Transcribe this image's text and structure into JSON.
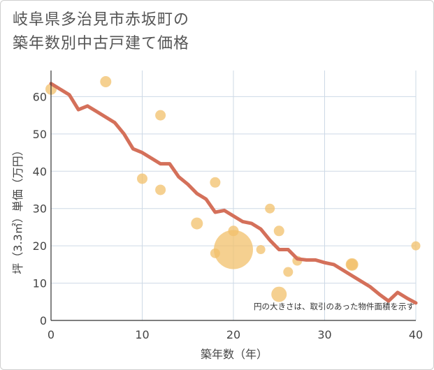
{
  "chart_data": {
    "type": "scatter",
    "title_lines": [
      "岐阜県多治見市赤坂町の",
      "築年数別中古戸建て価格"
    ],
    "xlabel": "築年数（年）",
    "ylabel": "坪（3.3㎡）単価（万円）",
    "xlim": [
      0,
      40
    ],
    "ylim": [
      0,
      67
    ],
    "xticks": [
      0,
      10,
      20,
      30,
      40
    ],
    "yticks": [
      0,
      10,
      20,
      30,
      40,
      50,
      60
    ],
    "grid": true,
    "note": "円の大きさは、取引のあった物件面積を示す",
    "colors": {
      "trend": "#d4705a",
      "bubble": "#f2c06b",
      "grid": "#cdd9e6",
      "axis": "#333333"
    },
    "trend": {
      "x": [
        0,
        1,
        2,
        3,
        4,
        5,
        6,
        7,
        8,
        9,
        10,
        11,
        12,
        13,
        14,
        15,
        16,
        17,
        18,
        19,
        20,
        21,
        22,
        23,
        24,
        25,
        26,
        27,
        28,
        29,
        30,
        31,
        32,
        33,
        34,
        35,
        36,
        37,
        38,
        39,
        40
      ],
      "y": [
        63.5,
        62,
        60.5,
        56.5,
        57.5,
        56,
        54.5,
        53,
        50,
        46,
        45,
        43.5,
        42,
        42,
        38.5,
        36.5,
        34,
        32.5,
        29,
        29.5,
        28,
        26.5,
        26,
        24.5,
        21.5,
        19,
        19,
        16.5,
        16.2,
        16.2,
        15.5,
        15,
        13.5,
        12,
        10.5,
        9,
        7,
        5.2,
        7.5,
        6,
        4.7
      ]
    },
    "points": [
      {
        "x": 0,
        "y": 62,
        "size": 8
      },
      {
        "x": 6,
        "y": 64,
        "size": 8
      },
      {
        "x": 10,
        "y": 38,
        "size": 7.5
      },
      {
        "x": 12,
        "y": 55,
        "size": 7.5
      },
      {
        "x": 12,
        "y": 35,
        "size": 7.5
      },
      {
        "x": 16,
        "y": 26,
        "size": 8.5
      },
      {
        "x": 18,
        "y": 37,
        "size": 7.5
      },
      {
        "x": 18,
        "y": 18,
        "size": 7
      },
      {
        "x": 20,
        "y": 24,
        "size": 7.5
      },
      {
        "x": 20,
        "y": 19,
        "size": 28
      },
      {
        "x": 23,
        "y": 19,
        "size": 6.5
      },
      {
        "x": 24,
        "y": 30,
        "size": 7
      },
      {
        "x": 25,
        "y": 24,
        "size": 7.5
      },
      {
        "x": 25,
        "y": 7,
        "size": 11
      },
      {
        "x": 26,
        "y": 13,
        "size": 7
      },
      {
        "x": 27,
        "y": 16,
        "size": 7
      },
      {
        "x": 33,
        "y": 15,
        "size": 9
      },
      {
        "x": 33,
        "y": 15,
        "size": 8
      },
      {
        "x": 40,
        "y": 20,
        "size": 6.5
      }
    ]
  }
}
